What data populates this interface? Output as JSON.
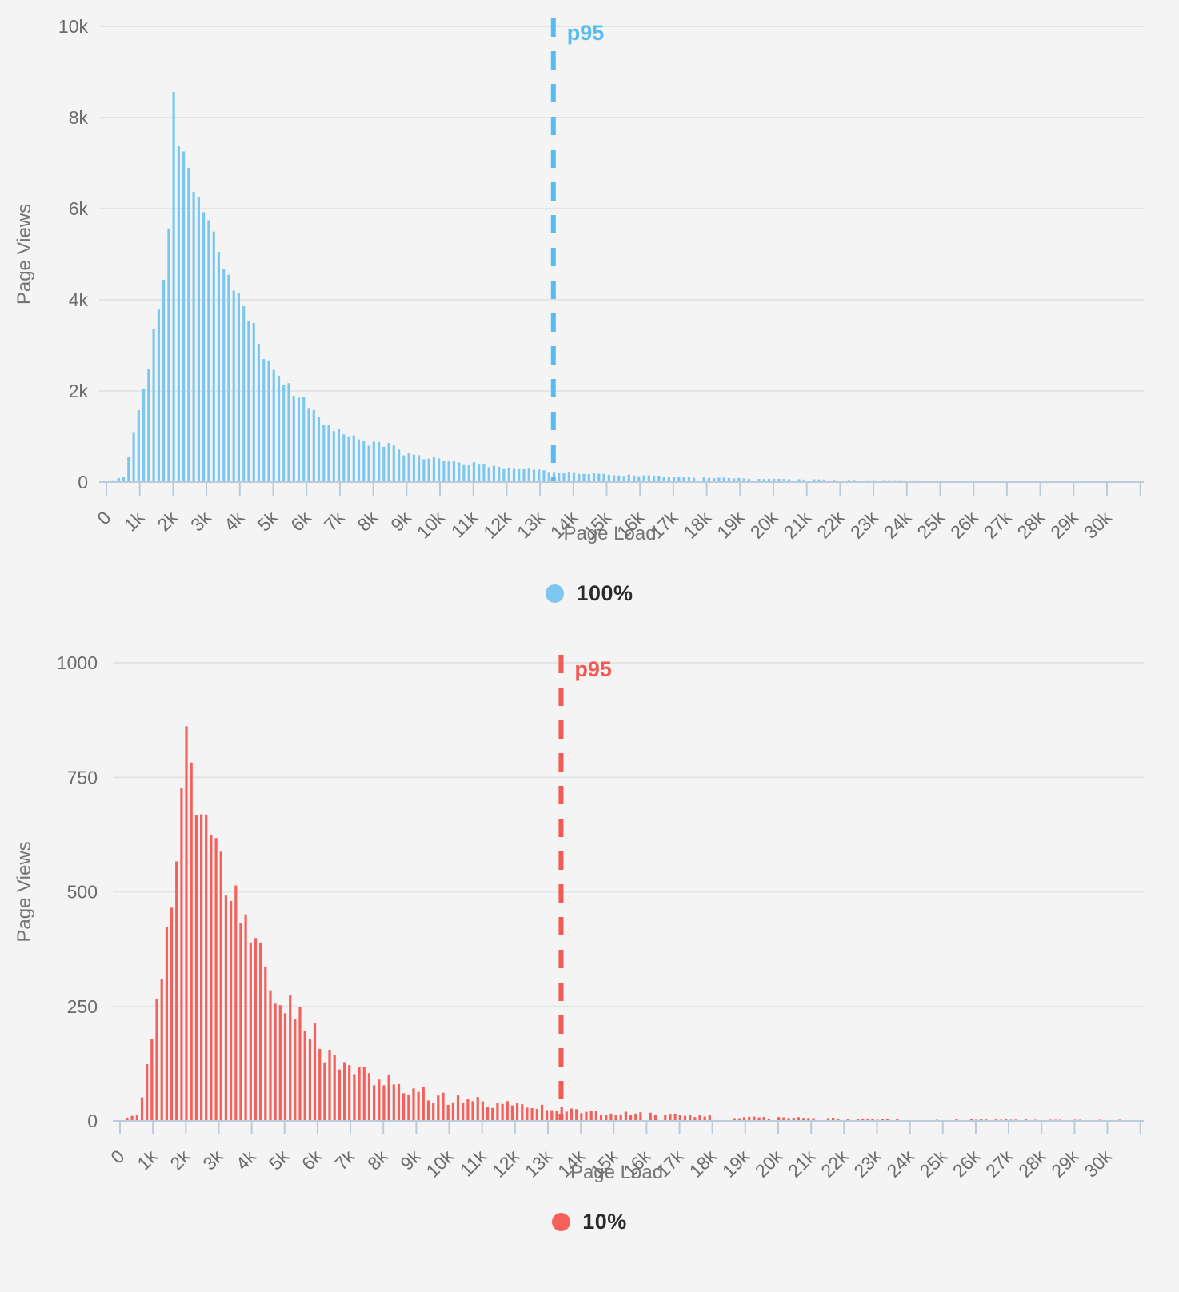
{
  "page": {
    "background": "#f4f4f4"
  },
  "style": {
    "grid_color": "#e4e4e4",
    "axis_color": "#b9cbdc",
    "tick_label_color": "#6b6b6b",
    "axis_title_color": "#757575",
    "legend_text_color": "#2b2b2b"
  },
  "chart_data": [
    {
      "id": "full",
      "type": "bar",
      "subtype": "histogram",
      "xlabel": "Page Load",
      "ylabel": "Page Views",
      "legend": {
        "label": "100%",
        "dot_color": "#7cc7ef"
      },
      "color": "#7cc7ef",
      "accent": "#58bcee",
      "ylim": [
        0,
        10000
      ],
      "xlim_ms": [
        0,
        30450
      ],
      "bucket_ms": 150,
      "grid": true,
      "legend_position": "bottom",
      "y_ticks": [
        {
          "value": 0,
          "label": "0"
        },
        {
          "value": 2000,
          "label": "2k"
        },
        {
          "value": 4000,
          "label": "4k"
        },
        {
          "value": 6000,
          "label": "6k"
        },
        {
          "value": 8000,
          "label": "8k"
        },
        {
          "value": 10000,
          "label": "10k"
        }
      ],
      "x_tick_labels": [
        "0",
        "1k",
        "2k",
        "3k",
        "4k",
        "5k",
        "6k",
        "7k",
        "8k",
        "9k",
        "10k",
        "11k",
        "12k",
        "13k",
        "14k",
        "15k",
        "16k",
        "17k",
        "18k",
        "19k",
        "20k",
        "21k",
        "22k",
        "23k",
        "24k",
        "25k",
        "26k",
        "27k",
        "28k",
        "29k",
        "30k"
      ],
      "p95": {
        "label": "p95",
        "x_ms": 13400
      },
      "envelope_points": [
        [
          0,
          0
        ],
        [
          150,
          40
        ],
        [
          300,
          85
        ],
        [
          450,
          130
        ],
        [
          600,
          540
        ],
        [
          750,
          1100
        ],
        [
          900,
          1600
        ],
        [
          1050,
          2000
        ],
        [
          1200,
          2600
        ],
        [
          1350,
          3400
        ],
        [
          1500,
          3750
        ],
        [
          1650,
          4400
        ],
        [
          1800,
          5600
        ],
        [
          1950,
          8450
        ],
        [
          2100,
          7450
        ],
        [
          2250,
          7350
        ],
        [
          2400,
          6800
        ],
        [
          2550,
          6450
        ],
        [
          2700,
          6150
        ],
        [
          2850,
          5900
        ],
        [
          3000,
          5600
        ],
        [
          3150,
          5350
        ],
        [
          3300,
          5100
        ],
        [
          3450,
          4850
        ],
        [
          3600,
          4550
        ],
        [
          3750,
          4300
        ],
        [
          3900,
          4050
        ],
        [
          4050,
          3800
        ],
        [
          4200,
          3550
        ],
        [
          4350,
          3300
        ],
        [
          4500,
          3050
        ],
        [
          4650,
          2870
        ],
        [
          4800,
          2700
        ],
        [
          5000,
          2480
        ],
        [
          5250,
          2250
        ],
        [
          5500,
          2050
        ],
        [
          5750,
          1850
        ],
        [
          6000,
          1650
        ],
        [
          6250,
          1500
        ],
        [
          6500,
          1350
        ],
        [
          6750,
          1200
        ],
        [
          7000,
          1060
        ],
        [
          7250,
          980
        ],
        [
          7500,
          920
        ],
        [
          7750,
          870
        ],
        [
          8000,
          860
        ],
        [
          8250,
          830
        ],
        [
          8500,
          760
        ],
        [
          8750,
          660
        ],
        [
          9000,
          610
        ],
        [
          9250,
          570
        ],
        [
          9500,
          540
        ],
        [
          9750,
          510
        ],
        [
          10000,
          480
        ],
        [
          10500,
          430
        ],
        [
          11000,
          390
        ],
        [
          11500,
          355
        ],
        [
          12000,
          320
        ],
        [
          12500,
          290
        ],
        [
          13000,
          260
        ],
        [
          13500,
          230
        ],
        [
          14000,
          200
        ],
        [
          14500,
          180
        ],
        [
          15000,
          165
        ],
        [
          15500,
          150
        ],
        [
          16000,
          140
        ],
        [
          16500,
          128
        ],
        [
          17000,
          118
        ],
        [
          17500,
          108
        ],
        [
          18000,
          98
        ],
        [
          18500,
          90
        ],
        [
          19000,
          82
        ],
        [
          19500,
          75
        ],
        [
          20000,
          68
        ],
        [
          21000,
          58
        ],
        [
          22000,
          50
        ],
        [
          23000,
          44
        ],
        [
          24000,
          38
        ],
        [
          25000,
          33
        ],
        [
          26000,
          29
        ],
        [
          27000,
          26
        ],
        [
          28000,
          23
        ],
        [
          29000,
          21
        ],
        [
          30000,
          19
        ],
        [
          30450,
          18
        ]
      ],
      "render_hints": {
        "seed": 11,
        "noise": 0.09,
        "sparse_from": 15500,
        "dropout_max": 0.55
      }
    },
    {
      "id": "sampled",
      "type": "bar",
      "subtype": "histogram",
      "xlabel": "Page Load",
      "ylabel": "Page Views",
      "legend": {
        "label": "10%",
        "dot_color": "#f8605a"
      },
      "color": "#f4605c",
      "accent": "#f25b55",
      "ylim": [
        0,
        1000
      ],
      "xlim_ms": [
        0,
        30450
      ],
      "bucket_ms": 150,
      "grid": true,
      "legend_position": "bottom",
      "y_ticks": [
        {
          "value": 0,
          "label": "0"
        },
        {
          "value": 250,
          "label": "250"
        },
        {
          "value": 500,
          "label": "500"
        },
        {
          "value": 750,
          "label": "750"
        },
        {
          "value": 1000,
          "label": "1000"
        }
      ],
      "x_tick_labels": [
        "0",
        "1k",
        "2k",
        "3k",
        "4k",
        "5k",
        "6k",
        "7k",
        "8k",
        "9k",
        "10k",
        "11k",
        "12k",
        "13k",
        "14k",
        "15k",
        "16k",
        "17k",
        "18k",
        "19k",
        "20k",
        "21k",
        "22k",
        "23k",
        "24k",
        "25k",
        "26k",
        "27k",
        "28k",
        "29k",
        "30k"
      ],
      "p95": {
        "label": "p95",
        "x_ms": 13400
      },
      "envelope_points": [
        [
          0,
          0
        ],
        [
          150,
          8
        ],
        [
          300,
          12
        ],
        [
          450,
          15
        ],
        [
          600,
          60
        ],
        [
          750,
          115
        ],
        [
          900,
          170
        ],
        [
          1050,
          225
        ],
        [
          1200,
          290
        ],
        [
          1350,
          380
        ],
        [
          1500,
          440
        ],
        [
          1650,
          560
        ],
        [
          1800,
          740
        ],
        [
          1950,
          880
        ],
        [
          2100,
          795
        ],
        [
          2250,
          690
        ],
        [
          2400,
          660
        ],
        [
          2550,
          640
        ],
        [
          2700,
          615
        ],
        [
          2850,
          590
        ],
        [
          3000,
          560
        ],
        [
          3150,
          530
        ],
        [
          3300,
          500
        ],
        [
          3450,
          490
        ],
        [
          3600,
          460
        ],
        [
          3750,
          440
        ],
        [
          3900,
          415
        ],
        [
          4050,
          390
        ],
        [
          4200,
          365
        ],
        [
          4350,
          340
        ],
        [
          4500,
          315
        ],
        [
          4650,
          292
        ],
        [
          4800,
          272
        ],
        [
          5000,
          250
        ],
        [
          5250,
          226
        ],
        [
          5500,
          205
        ],
        [
          5750,
          186
        ],
        [
          6000,
          166
        ],
        [
          6250,
          152
        ],
        [
          6500,
          136
        ],
        [
          6750,
          121
        ],
        [
          7000,
          107
        ],
        [
          7250,
          99
        ],
        [
          7500,
          93
        ],
        [
          7750,
          88
        ],
        [
          8000,
          86
        ],
        [
          8250,
          83
        ],
        [
          8500,
          76
        ],
        [
          8750,
          66
        ],
        [
          9000,
          61
        ],
        [
          9250,
          57
        ],
        [
          9500,
          54
        ],
        [
          9750,
          51
        ],
        [
          10000,
          48
        ],
        [
          10500,
          43
        ],
        [
          11000,
          39
        ],
        [
          11500,
          35
        ],
        [
          12000,
          32
        ],
        [
          12500,
          29
        ],
        [
          13000,
          26
        ],
        [
          13500,
          23
        ],
        [
          14000,
          20
        ],
        [
          14500,
          18
        ],
        [
          15000,
          16
        ],
        [
          15500,
          15
        ],
        [
          16000,
          14
        ],
        [
          16500,
          13
        ],
        [
          17000,
          12
        ],
        [
          17500,
          11
        ],
        [
          18000,
          10
        ],
        [
          18500,
          9
        ],
        [
          19000,
          8
        ],
        [
          19500,
          8
        ],
        [
          20000,
          7
        ],
        [
          21000,
          6
        ],
        [
          22000,
          5
        ],
        [
          23000,
          4
        ],
        [
          24000,
          4
        ],
        [
          25000,
          3
        ],
        [
          26000,
          3
        ],
        [
          27000,
          3
        ],
        [
          28000,
          2
        ],
        [
          29000,
          2
        ],
        [
          30000,
          2
        ],
        [
          30450,
          2
        ]
      ],
      "render_hints": {
        "seed": 29,
        "noise": 0.3,
        "sparse_from": 14000,
        "dropout_max": 0.62
      }
    }
  ]
}
